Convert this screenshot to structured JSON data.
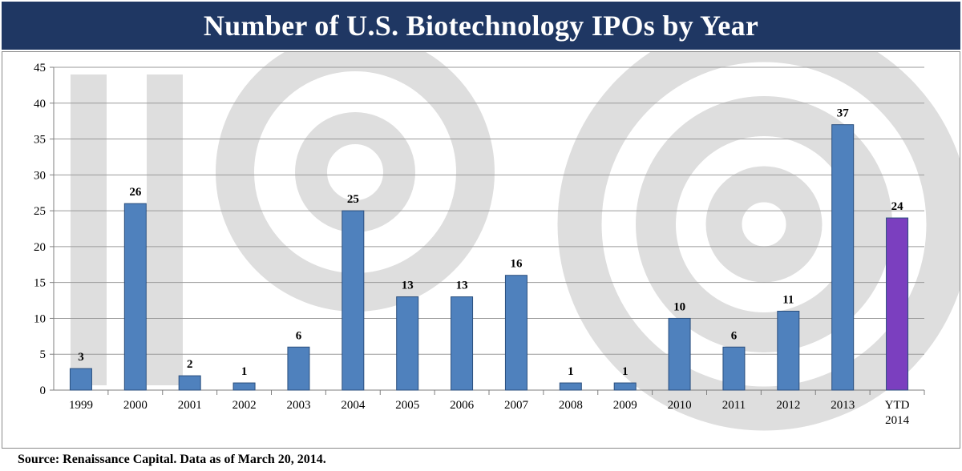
{
  "title": "Number of U.S. Biotechnology IPOs by Year",
  "source": "Source: Renaissance Capital. Data as of March 20, 2014.",
  "colors": {
    "title_bg": "#1f3763",
    "bar": "#4f81bd",
    "bar_highlight": "#7b3fbf",
    "watermark": "#dedede"
  },
  "chart_data": {
    "type": "bar",
    "title": "Number of U.S. Biotechnology IPOs by Year",
    "xlabel": "",
    "ylabel": "",
    "ylim": [
      0,
      45
    ],
    "yticks": [
      "0",
      "5",
      "10",
      "15",
      "20",
      "25",
      "30",
      "35",
      "40",
      "45"
    ],
    "grid": true,
    "categories": [
      [
        "1999"
      ],
      [
        "2000"
      ],
      [
        "2001"
      ],
      [
        "2002"
      ],
      [
        "2003"
      ],
      [
        "2004"
      ],
      [
        "2005"
      ],
      [
        "2006"
      ],
      [
        "2007"
      ],
      [
        "2008"
      ],
      [
        "2009"
      ],
      [
        "2010"
      ],
      [
        "2011"
      ],
      [
        "2012"
      ],
      [
        "2013"
      ],
      [
        "YTD",
        "2014"
      ]
    ],
    "values": [
      3,
      26,
      2,
      1,
      6,
      25,
      13,
      13,
      16,
      1,
      1,
      10,
      6,
      11,
      37,
      24
    ],
    "highlight_index": 15
  }
}
